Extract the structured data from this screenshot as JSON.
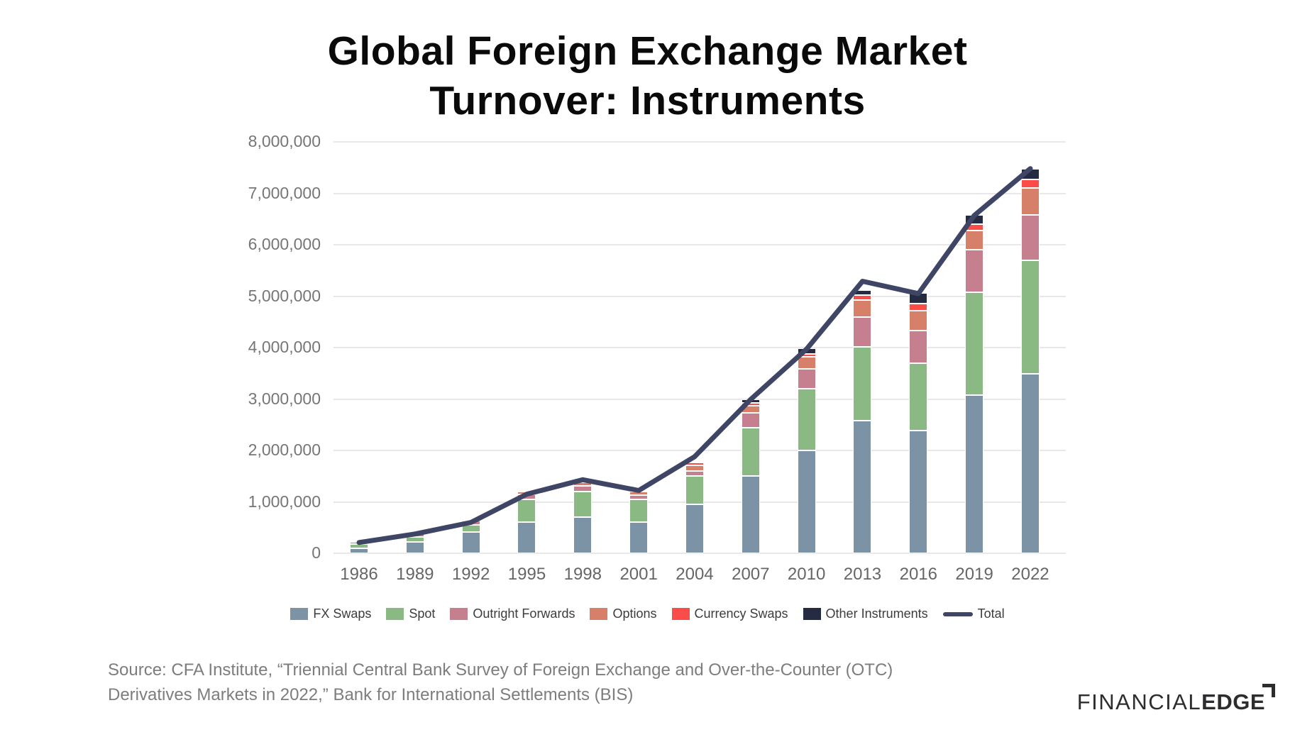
{
  "title": "Global Foreign Exchange Market Turnover: Instruments",
  "source": {
    "line1": "Source: CFA Institute, “Triennial Central Bank Survey of Foreign Exchange and Over-the-Counter (OTC)",
    "line2": "Derivatives Markets in 2022,” Bank for International Settlements (BIS)"
  },
  "logo": {
    "thin": "FINANCIAL",
    "bold": "EDGE"
  },
  "chart_data": {
    "type": "bar",
    "subtype": "stacked-column-with-line",
    "grid": true,
    "legend_position": "bottom",
    "categories": [
      "1986",
      "1989",
      "1992",
      "1995",
      "1998",
      "2001",
      "2004",
      "2007",
      "2010",
      "2013",
      "2016",
      "2019",
      "2022"
    ],
    "series": [
      {
        "name": "FX Swaps",
        "color": "#7b93a4",
        "values": [
          100000,
          215000,
          415000,
          610000,
          705000,
          610000,
          950000,
          1510000,
          2000000,
          2580000,
          2390000,
          3080000,
          3490000
        ]
      },
      {
        "name": "Spot",
        "color": "#8ab983",
        "values": [
          75000,
          105000,
          140000,
          445000,
          490000,
          445000,
          555000,
          930000,
          1200000,
          1430000,
          1310000,
          2000000,
          2200000
        ]
      },
      {
        "name": "Outright Forwards",
        "color": "#c67f8e",
        "values": [
          45000,
          70000,
          80000,
          85000,
          120000,
          75000,
          95000,
          295000,
          390000,
          580000,
          630000,
          830000,
          885000
        ]
      },
      {
        "name": "Options",
        "color": "#d6806a",
        "values": [
          0,
          0,
          0,
          55000,
          65000,
          65000,
          105000,
          135000,
          225000,
          330000,
          390000,
          365000,
          525000
        ]
      },
      {
        "name": "Currency Swaps",
        "color": "#fa4d48",
        "values": [
          0,
          0,
          0,
          0,
          0,
          0,
          60000,
          60000,
          60000,
          100000,
          130000,
          125000,
          170000
        ]
      },
      {
        "name": "Other Instruments",
        "color": "#252b41",
        "values": [
          0,
          0,
          0,
          0,
          0,
          25000,
          35000,
          70000,
          105000,
          95000,
          215000,
          175000,
          200000
        ]
      }
    ],
    "line_series": {
      "name": "Total",
      "color": "#3f4565",
      "values": [
        210000,
        375000,
        600000,
        1150000,
        1430000,
        1220000,
        1880000,
        2990000,
        3970000,
        5290000,
        5050000,
        6570000,
        7480000
      ]
    },
    "stack_totals": [
      220000,
      390000,
      635000,
      1195000,
      1380000,
      1220000,
      1800000,
      3000000,
      3980000,
      5115000,
      5065000,
      6575000,
      7470000
    ],
    "ylim": [
      0,
      8000000
    ],
    "ytick_step": 1000000,
    "y_tick_labels": [
      "0",
      "1,000,000",
      "2,000,000",
      "3,000,000",
      "4,000,000",
      "5,000,000",
      "6,000,000",
      "7,000,000",
      "8,000,000"
    ],
    "xlabel": "",
    "ylabel": ""
  }
}
